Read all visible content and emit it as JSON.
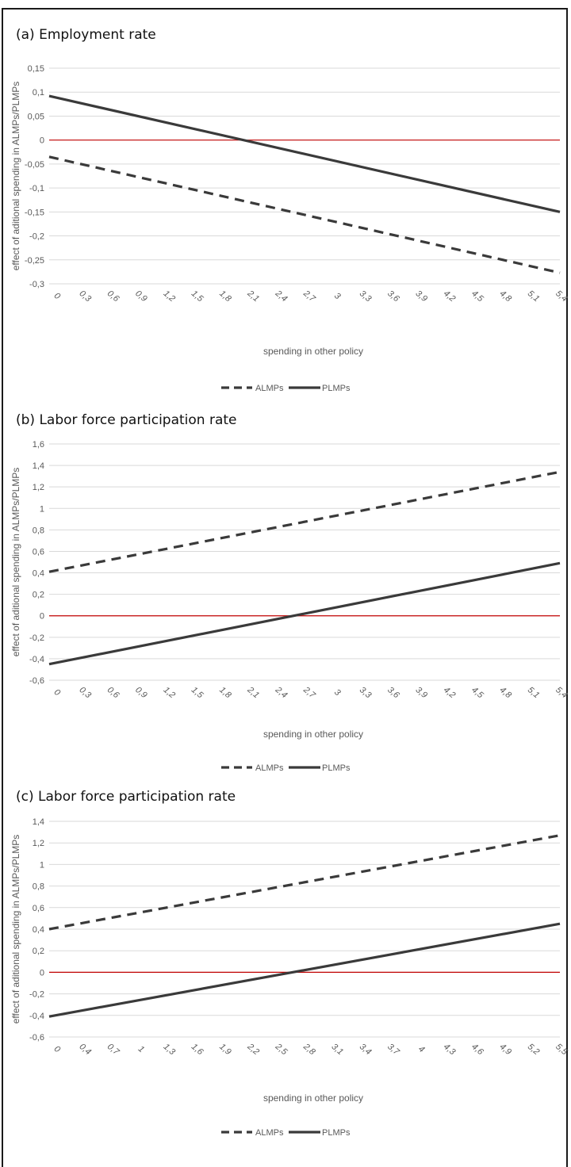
{
  "chart_data": [
    {
      "type": "line",
      "title": "(a) Employment rate",
      "xlabel": "spending in other policy",
      "ylabel": "effect of aditional spending in ALMPs/PLMPs",
      "ylim": [
        -0.3,
        0.15
      ],
      "yticks": [
        "0,15",
        "0,1",
        "0,05",
        "0",
        "-0,05",
        "-0,1",
        "-0,15",
        "-0,2",
        "-0,25",
        "-0,3"
      ],
      "ytick_values": [
        0.15,
        0.1,
        0.05,
        0,
        -0.05,
        -0.1,
        -0.15,
        -0.2,
        -0.25,
        -0.3
      ],
      "xticks": [
        "0",
        "0,3",
        "0,6",
        "0,9",
        "1,2",
        "1,5",
        "1,8",
        "2,1",
        "2,4",
        "2,7",
        "3",
        "3,3",
        "3,6",
        "3,9",
        "4,2",
        "4,5",
        "4,8",
        "5,1",
        "5,4"
      ],
      "xlim": [
        0,
        5.4
      ],
      "grid": true,
      "zero_line_color": "#c00000",
      "legend_position": "bottom",
      "series": [
        {
          "name": "ALMPs",
          "style": "dashed",
          "color": "#3a3a3a",
          "x": [
            0,
            5.4
          ],
          "values": [
            -0.035,
            -0.277
          ]
        },
        {
          "name": "PLMPs",
          "style": "solid",
          "color": "#3a3a3a",
          "x": [
            0,
            5.4
          ],
          "values": [
            0.092,
            -0.15
          ]
        }
      ]
    },
    {
      "type": "line",
      "title": "(b) Labor force participation rate",
      "xlabel": "spending in other policy",
      "ylabel": "effect of aditional spending in ALMPs/PLMPs",
      "ylim": [
        -0.6,
        1.6
      ],
      "yticks": [
        "1,6",
        "1,4",
        "1,2",
        "1",
        "0,8",
        "0,6",
        "0,4",
        "0,2",
        "0",
        "-0,2",
        "-0,4",
        "-0,6"
      ],
      "ytick_values": [
        1.6,
        1.4,
        1.2,
        1,
        0.8,
        0.6,
        0.4,
        0.2,
        0,
        -0.2,
        -0.4,
        -0.6
      ],
      "xticks": [
        "0",
        "0,3",
        "0,6",
        "0,9",
        "1,2",
        "1,5",
        "1,8",
        "2,1",
        "2,4",
        "2,7",
        "3",
        "3,3",
        "3,6",
        "3,9",
        "4,2",
        "4,5",
        "4,8",
        "5,1",
        "5,4"
      ],
      "xlim": [
        0,
        5.4
      ],
      "grid": true,
      "zero_line_color": "#c00000",
      "legend_position": "bottom",
      "series": [
        {
          "name": "ALMPs",
          "style": "dashed",
          "color": "#3a3a3a",
          "x": [
            0,
            5.4
          ],
          "values": [
            0.41,
            1.34
          ]
        },
        {
          "name": "PLMPs",
          "style": "solid",
          "color": "#3a3a3a",
          "x": [
            0,
            5.4
          ],
          "values": [
            -0.45,
            0.49
          ]
        }
      ]
    },
    {
      "type": "line",
      "title": "(c) Labor force participation rate",
      "xlabel": "spending in other policy",
      "ylabel": "effect of aditional spending in ALMPs/PLMPs",
      "ylim": [
        -0.6,
        1.4
      ],
      "yticks": [
        "1,4",
        "1,2",
        "1",
        "0,8",
        "0,6",
        "0,4",
        "0,2",
        "0",
        "-0,2",
        "-0,4",
        "-0,6"
      ],
      "ytick_values": [
        1.4,
        1.2,
        1,
        0.8,
        0.6,
        0.4,
        0.2,
        0,
        -0.2,
        -0.4,
        -0.6
      ],
      "xticks": [
        "0",
        "0,4",
        "0,7",
        "1",
        "1,3",
        "1,6",
        "1,9",
        "2,2",
        "2,5",
        "2,8",
        "3,1",
        "3,4",
        "3,7",
        "4",
        "4,3",
        "4,6",
        "4,9",
        "5,2",
        "5,5"
      ],
      "xlim": [
        0,
        5.5
      ],
      "grid": true,
      "zero_line_color": "#c00000",
      "legend_position": "bottom",
      "series": [
        {
          "name": "ALMPs",
          "style": "dashed",
          "color": "#3a3a3a",
          "x": [
            0,
            5.5
          ],
          "values": [
            0.4,
            1.27
          ]
        },
        {
          "name": "PLMPs",
          "style": "solid",
          "color": "#3a3a3a",
          "x": [
            0,
            5.5
          ],
          "values": [
            -0.41,
            0.45
          ]
        }
      ]
    }
  ]
}
